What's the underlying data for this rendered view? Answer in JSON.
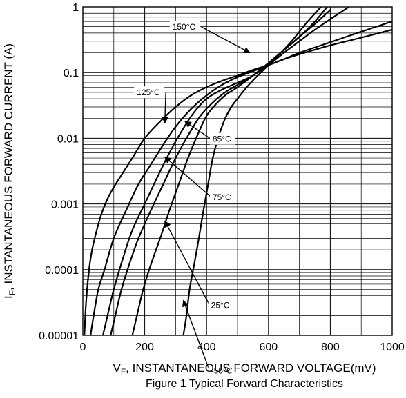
{
  "chart_data": {
    "type": "line",
    "title": "Figure 1  Typical Forward Characteristics",
    "xlabel": {
      "main": "V",
      "sub": "F",
      "rest": ", INSTANTANEOUS FORWARD VOLTAGE(mV)"
    },
    "ylabel": {
      "main": "I",
      "sub": "F",
      "rest": ", INSTANTANEOUS FORWARD CURRENT (A)"
    },
    "x_scale": "linear",
    "y_scale": "log",
    "xlim": [
      0,
      1000
    ],
    "ylim": [
      1e-05,
      1
    ],
    "x_ticks": [
      0,
      200,
      400,
      600,
      800,
      1000
    ],
    "x_tick_labels": [
      "0",
      "200",
      "400",
      "600",
      "800",
      "1000"
    ],
    "y_ticks": [
      1e-05,
      0.0001,
      0.001,
      0.01,
      0.1,
      1
    ],
    "y_tick_labels": [
      "0.00001",
      "0.0001",
      "0.001",
      "0.01",
      "0.1",
      "1"
    ],
    "grid": true,
    "series": [
      {
        "name": "150°C",
        "x": [
          5,
          10,
          20,
          30,
          45,
          60,
          80,
          100,
          130,
          160,
          200,
          250,
          300,
          350,
          400,
          450,
          500,
          550,
          600,
          650,
          700,
          800,
          900,
          1000
        ],
        "y": [
          1e-05,
          3e-05,
          0.0001,
          0.0002,
          0.0004,
          0.0007,
          0.0012,
          0.0018,
          0.003,
          0.005,
          0.01,
          0.018,
          0.03,
          0.045,
          0.06,
          0.075,
          0.09,
          0.11,
          0.13,
          0.16,
          0.19,
          0.26,
          0.34,
          0.45
        ],
        "label": {
          "text": "150°C",
          "at": [
            285,
            0.45
          ],
          "arrow_to": [
            540,
            0.2
          ]
        }
      },
      {
        "name": "125°C",
        "x": [
          25,
          35,
          50,
          70,
          100,
          140,
          180,
          220,
          260,
          300,
          350,
          400,
          450,
          500,
          550,
          600,
          650,
          700,
          800,
          900,
          1000
        ],
        "y": [
          1e-05,
          2e-05,
          5e-05,
          0.0001,
          0.0003,
          0.0008,
          0.002,
          0.004,
          0.008,
          0.015,
          0.028,
          0.045,
          0.065,
          0.085,
          0.105,
          0.13,
          0.16,
          0.2,
          0.29,
          0.42,
          0.6
        ],
        "label": {
          "text": "125°C",
          "at": [
            170,
            0.045
          ],
          "arrow_to": [
            265,
            0.017
          ]
        }
      },
      {
        "name": "85°C",
        "x": [
          65,
          80,
          100,
          130,
          160,
          200,
          240,
          280,
          320,
          360,
          400,
          450,
          500,
          550,
          600,
          650,
          700,
          750,
          800,
          860
        ],
        "y": [
          1e-05,
          2e-05,
          5e-05,
          0.00015,
          0.0004,
          0.001,
          0.0025,
          0.006,
          0.013,
          0.025,
          0.04,
          0.055,
          0.07,
          0.09,
          0.13,
          0.2,
          0.3,
          0.45,
          0.65,
          1
        ],
        "label": {
          "text": "85°C",
          "at": [
            415,
            0.0088
          ],
          "arrow_to": [
            330,
            0.018
          ]
        }
      },
      {
        "name": "75°C",
        "x": [
          90,
          105,
          125,
          150,
          180,
          220,
          260,
          300,
          340,
          380,
          420,
          460,
          500,
          550,
          600,
          650,
          700,
          750,
          800
        ],
        "y": [
          1e-05,
          2e-05,
          5e-05,
          0.00012,
          0.0003,
          0.0008,
          0.002,
          0.005,
          0.011,
          0.022,
          0.035,
          0.05,
          0.065,
          0.09,
          0.14,
          0.22,
          0.35,
          0.55,
          0.9
        ],
        "label": {
          "text": "75°C",
          "at": [
            415,
            0.00115
          ],
          "arrow_to": [
            265,
            0.0052
          ]
        }
      },
      {
        "name": "25°C",
        "x": [
          160,
          175,
          195,
          220,
          250,
          280,
          310,
          340,
          370,
          400,
          430,
          460,
          500,
          550,
          600,
          650,
          700,
          750,
          790
        ],
        "y": [
          1e-05,
          2e-05,
          5e-05,
          0.00012,
          0.0003,
          0.0008,
          0.002,
          0.005,
          0.011,
          0.022,
          0.033,
          0.045,
          0.06,
          0.09,
          0.14,
          0.22,
          0.35,
          0.6,
          1
        ],
        "label": {
          "text": "25°C",
          "at": [
            410,
            2.6e-05
          ],
          "arrow_to": [
            265,
            0.00055
          ]
        }
      },
      {
        "name": "-55°C",
        "x": [
          325,
          335,
          345,
          360,
          375,
          390,
          405,
          420,
          440,
          460,
          480,
          500,
          530,
          560,
          600,
          640,
          680,
          720,
          770
        ],
        "y": [
          1e-05,
          2e-05,
          5e-05,
          0.00012,
          0.0003,
          0.0008,
          0.002,
          0.005,
          0.011,
          0.02,
          0.03,
          0.04,
          0.06,
          0.085,
          0.13,
          0.2,
          0.32,
          0.55,
          1
        ],
        "label": {
          "text": "-55°C",
          "at": [
            410,
            2.6e-06
          ],
          "arrow_to": [
            325,
            3.4e-05
          ]
        }
      }
    ]
  }
}
